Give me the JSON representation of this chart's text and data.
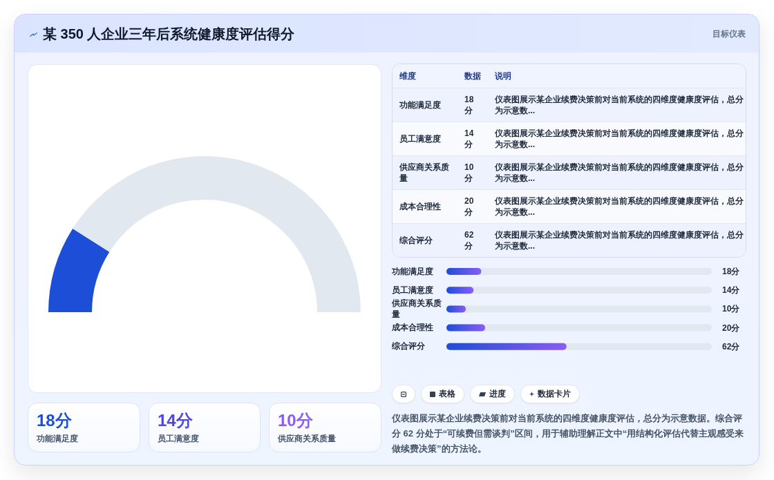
{
  "chart_data": [
    {
      "type": "other",
      "title": "某 350 人企业三年后系统健康度评估得分",
      "subtitle": "目标仪表"
    },
    {
      "type": "donut",
      "categories": [
        null,
        null
      ],
      "values": [
        18,
        82
      ],
      "colors": [
        "#1d4ed8",
        "#e2e8f0"
      ]
    },
    {
      "type": "other",
      "categories": [
        "功能满足度",
        "员工满意度",
        "供应商关系质量"
      ],
      "value_labels": [
        "18分",
        "14分",
        "10分"
      ]
    },
    {
      "type": "other",
      "categories": [
        "功能满足度",
        "员工满意度",
        "供应商关系质量",
        "成本合理性",
        "综合评分"
      ],
      "value_labels": [
        "18 分",
        "14 分",
        "10 分",
        "20 分",
        "62 分"
      ],
      "annotations": [
        "维度",
        "数据",
        "说明",
        "仪表图展示某企业续费决策前对当前系统的四维度健康度评估，总分为示意数...",
        "仪表图展示某企业续费决策前对当前系统的四维度健康度评估，总分为示意数...",
        "仪表图展示某企业续费决策前对当前系统的四维度健康度评估，总分为示意数...",
        "仪表图展示某企业续费决策前对当前系统的四维度健康度评估，总分为示意数...",
        "仪表图展示某企业续费决策前对当前系统的四维度健康度评估，总分为示意数..."
      ]
    },
    {
      "type": "bar",
      "orientation": "horizontal",
      "categories": [
        "功能满足度",
        "员工满意度",
        "供应商关系质量",
        "成本合理性",
        "综合评分"
      ],
      "values": [
        18,
        14,
        10,
        20,
        62
      ],
      "value_labels": [
        "18分",
        "14分",
        "10分",
        "20分",
        "62分"
      ],
      "color": "#1d4ed8",
      "xlim": [
        0,
        137
      ],
      "tick_labels": "y"
    },
    {
      "type": "other",
      "categories": [
        null,
        "表格",
        "进度",
        "数据卡片"
      ],
      "annotations": [
        "仪表图展示某企业续费决策前对当前系统的四维度健康度评估，总分为示意数据。综合评分 62 分处于“可续费但需谈判”区间，用于辅助理解正文中“用结构化评估代替主观感受来做续费决策”的方法论。"
      ]
    }
  ]
}
